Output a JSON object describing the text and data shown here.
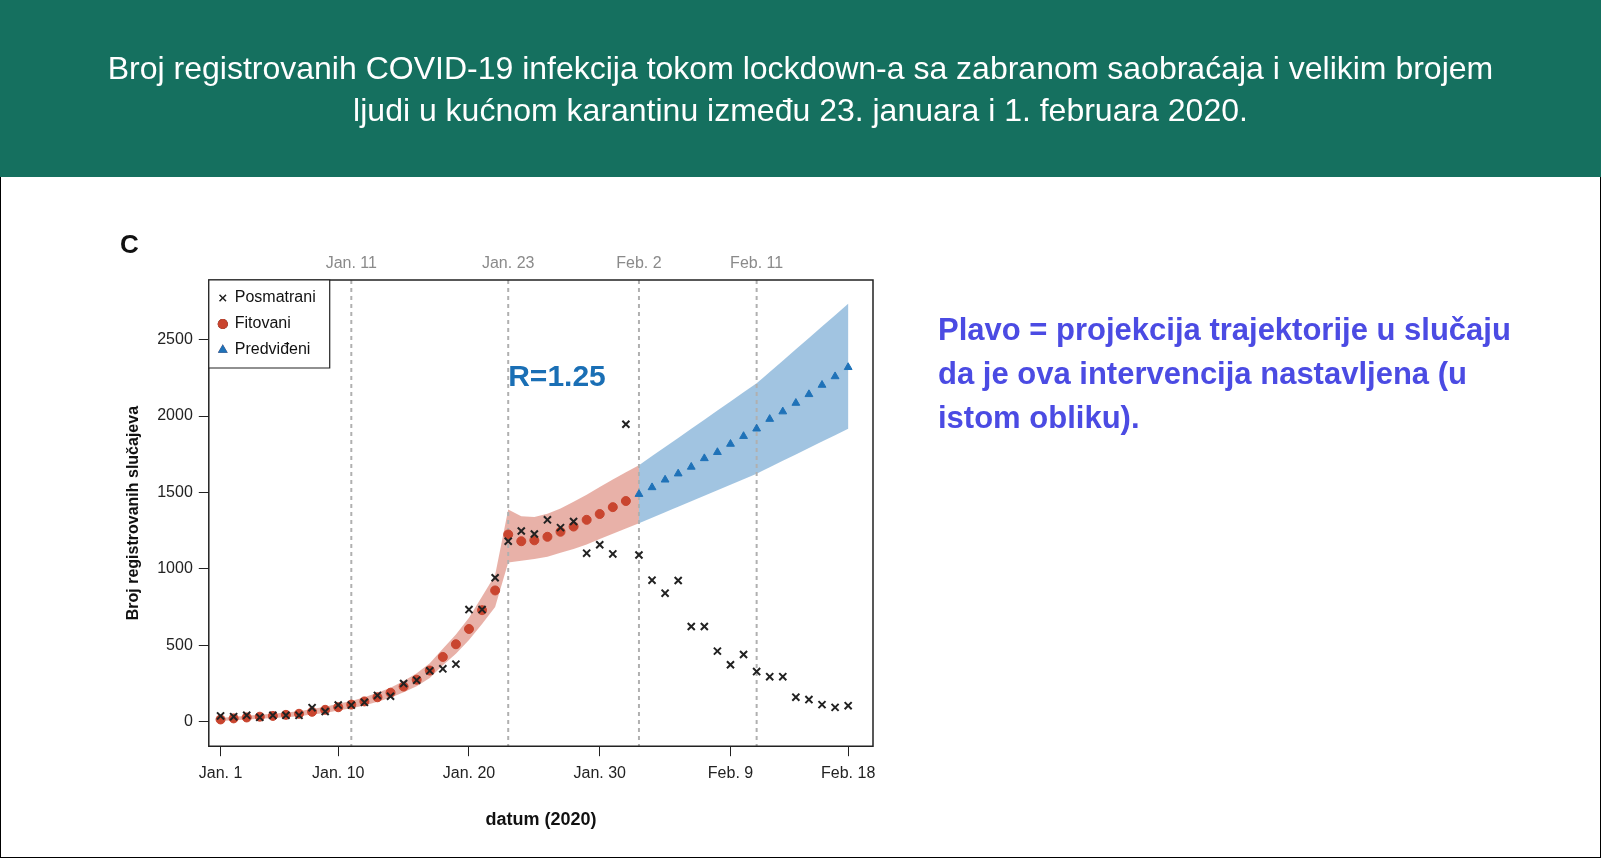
{
  "chart_data": {
    "type": "scatter",
    "title": "Broj registrovanih COVID-19 infekcija tokom lockdown-a sa zabranom saobraćaja i velikim brojem ljudi u kućnom karantinu između 23. januara i 1. februara 2020.",
    "xlabel": "datum (2020)",
    "ylabel": "Broj registrovanih slučajeva",
    "xlim": [
      "2019-12-31T02:24",
      "2020-02-19T21:36"
    ],
    "ylim": [
      -160,
      2890
    ],
    "xticks": [
      {
        "value": "2020-01-01",
        "label": "Jan. 1"
      },
      {
        "value": "2020-01-10",
        "label": "Jan. 10"
      },
      {
        "value": "2020-01-20",
        "label": "Jan. 20"
      },
      {
        "value": "2020-01-30",
        "label": "Jan. 30"
      },
      {
        "value": "2020-02-09",
        "label": "Feb. 9"
      },
      {
        "value": "2020-02-18",
        "label": "Feb. 18"
      }
    ],
    "yticks": [
      0,
      500,
      1000,
      1500,
      2000,
      2500
    ],
    "grid": false,
    "legend": "top left",
    "ref_lines": [
      {
        "axis": "x",
        "value": "2020-01-11",
        "label": "Jan. 11",
        "color": "#b0b0b0",
        "line_style": "dashed"
      },
      {
        "axis": "x",
        "value": "2020-01-23",
        "label": "Jan. 23",
        "color": "#b0b0b0",
        "line_style": "dashed"
      },
      {
        "axis": "x",
        "value": "2020-02-02",
        "label": "Feb. 2",
        "color": "#b0b0b0",
        "line_style": "dashed"
      },
      {
        "axis": "x",
        "value": "2020-02-11",
        "label": "Feb. 11",
        "color": "#b0b0b0",
        "line_style": "dashed"
      }
    ],
    "annotations": [
      "C",
      {
        "text": "R=1.25",
        "x": "2020-01-23",
        "y": 2250
      },
      "Plavo = projekcija trajektorije u slučaju da je ova intervencija nastavljena (u istom obliku)."
    ],
    "series": [
      {
        "name": "Posmatrani",
        "type": "scatter",
        "marker": "cross",
        "color": "#222222",
        "x": [
          "2020-01-01",
          "2020-01-02",
          "2020-01-03",
          "2020-01-04",
          "2020-01-05",
          "2020-01-06",
          "2020-01-07",
          "2020-01-08",
          "2020-01-09",
          "2020-01-10",
          "2020-01-11",
          "2020-01-12",
          "2020-01-13",
          "2020-01-14",
          "2020-01-15",
          "2020-01-16",
          "2020-01-17",
          "2020-01-18",
          "2020-01-19",
          "2020-01-20",
          "2020-01-21",
          "2020-01-22",
          "2020-01-23",
          "2020-01-24",
          "2020-01-25",
          "2020-01-26",
          "2020-01-27",
          "2020-01-28",
          "2020-01-29",
          "2020-01-30",
          "2020-01-31",
          "2020-02-01",
          "2020-02-02",
          "2020-02-03",
          "2020-02-04",
          "2020-02-05",
          "2020-02-06",
          "2020-02-07",
          "2020-02-08",
          "2020-02-09",
          "2020-02-10",
          "2020-02-11",
          "2020-02-12",
          "2020-02-13",
          "2020-02-14",
          "2020-02-15",
          "2020-02-16",
          "2020-02-17",
          "2020-02-18"
        ],
        "values": [
          38,
          33,
          42,
          29,
          42,
          42,
          42,
          92,
          67,
          109,
          109,
          127,
          172,
          167,
          250,
          272,
          333,
          346,
          377,
          734,
          734,
          942,
          1181,
          1248,
          1228,
          1321,
          1270,
          1310,
          1103,
          1158,
          1098,
          1946,
          1091,
          926,
          841,
          924,
          623,
          623,
          462,
          373,
          440,
          328,
          295,
          295,
          161,
          145,
          112,
          94,
          105
        ]
      },
      {
        "name": "Fitovani",
        "type": "scatter",
        "marker": "circle",
        "color": "#c9452f",
        "x": [
          "2020-01-01",
          "2020-01-02",
          "2020-01-03",
          "2020-01-04",
          "2020-01-05",
          "2020-01-06",
          "2020-01-07",
          "2020-01-08",
          "2020-01-09",
          "2020-01-10",
          "2020-01-11",
          "2020-01-12",
          "2020-01-13",
          "2020-01-14",
          "2020-01-15",
          "2020-01-16",
          "2020-01-17",
          "2020-01-18",
          "2020-01-19",
          "2020-01-20",
          "2020-01-21",
          "2020-01-22",
          "2020-01-23",
          "2020-01-24",
          "2020-01-25",
          "2020-01-26",
          "2020-01-27",
          "2020-01-28",
          "2020-01-29",
          "2020-01-30",
          "2020-01-31",
          "2020-02-01",
          "2020-02-02"
        ],
        "values": [
          15,
          22,
          28,
          33,
          38,
          45,
          52,
          65,
          78,
          95,
          112,
          133,
          160,
          190,
          230,
          275,
          335,
          424,
          507,
          607,
          730,
          859,
          1225,
          1181,
          1187,
          1210,
          1243,
          1277,
          1321,
          1359,
          1404,
          1444,
          null
        ],
        "lower": [
          5,
          10,
          15,
          20,
          24,
          30,
          36,
          47,
          58,
          73,
          88,
          106,
          130,
          157,
          193,
          233,
          287,
          370,
          445,
          535,
          640,
          750,
          1042,
          1054,
          1065,
          1080,
          1105,
          1130,
          1160,
          1195,
          1230,
          1265,
          1299
        ],
        "upper": [
          25,
          32,
          40,
          46,
          52,
          60,
          68,
          83,
          98,
          117,
          136,
          160,
          190,
          223,
          267,
          317,
          383,
          478,
          570,
          680,
          820,
          960,
          1388,
          1344,
          1340,
          1360,
          1395,
          1440,
          1485,
          1535,
          1585,
          1632,
          1678
        ]
      },
      {
        "name": "Predviđeni",
        "type": "scatter",
        "marker": "triangle",
        "color": "#1f72b8",
        "x": [
          "2020-02-02",
          "2020-02-03",
          "2020-02-04",
          "2020-02-05",
          "2020-02-06",
          "2020-02-07",
          "2020-02-08",
          "2020-02-09",
          "2020-02-10",
          "2020-02-11",
          "2020-02-12",
          "2020-02-13",
          "2020-02-14",
          "2020-02-15",
          "2020-02-16",
          "2020-02-17",
          "2020-02-18"
        ],
        "values": [
          1489,
          1533,
          1583,
          1623,
          1667,
          1723,
          1763,
          1817,
          1868,
          1917,
          1980,
          2029,
          2085,
          2142,
          2203,
          2259,
          2319
        ],
        "lower": [
          1299,
          1335,
          1371,
          1407,
          1443,
          1479,
          1515,
          1551,
          1587,
          1623,
          1665,
          1707,
          1749,
          1791,
          1833,
          1875,
          1917
        ],
        "upper": [
          1678,
          1738,
          1798,
          1857,
          1917,
          1976,
          2036,
          2095,
          2155,
          2214,
          2288,
          2362,
          2437,
          2511,
          2585,
          2660,
          2734
        ]
      }
    ]
  }
}
